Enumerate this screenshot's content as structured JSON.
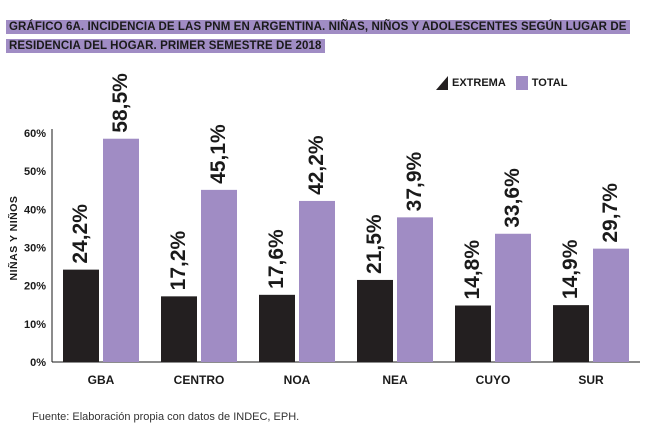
{
  "title": "GRÁFICO 6A. INCIDENCIA DE LAS PNM EN ARGENTINA. NIÑAS, NIÑOS Y ADOLESCENTES SEGÚN LUGAR DE RESIDENCIA DEL HOGAR. PRIMER SEMESTRE DE 2018",
  "source": "Fuente: Elaboración propia con datos de INDEC, EPH.",
  "legend": {
    "extrema": "EXTREMA",
    "total": "TOTAL"
  },
  "colors": {
    "extrema": "#231f20",
    "total": "#a08cc4",
    "title_bg": "#a08cc4"
  },
  "chart_data": {
    "type": "bar",
    "title": "GRÁFICO 6A. INCIDENCIA DE LAS PNM EN ARGENTINA. NIÑAS, NIÑOS Y ADOLESCENTES SEGÚN LUGAR DE RESIDENCIA DEL HOGAR. PRIMER SEMESTRE DE 2018",
    "xlabel": "",
    "ylabel": "NIÑAS Y NIÑOS",
    "categories": [
      "GBA",
      "CENTRO",
      "NOA",
      "NEA",
      "CUYO",
      "SUR"
    ],
    "series": [
      {
        "name": "EXTREMA",
        "values": [
          24.2,
          17.2,
          17.6,
          21.5,
          14.8,
          14.9
        ],
        "labels": [
          "24,2%",
          "17,2%",
          "17,6%",
          "21,5%",
          "14,8%",
          "14,9%"
        ]
      },
      {
        "name": "TOTAL",
        "values": [
          58.5,
          45.1,
          42.2,
          37.9,
          33.6,
          29.7
        ],
        "labels": [
          "58,5%",
          "45,1%",
          "42,2%",
          "37,9%",
          "33,6%",
          "29,7%"
        ]
      }
    ],
    "yticks": [
      "0%",
      "10%",
      "20%",
      "30%",
      "40%",
      "50%",
      "60%"
    ],
    "ylim": [
      0,
      60
    ],
    "grid": false,
    "legend_position": "top-right"
  }
}
